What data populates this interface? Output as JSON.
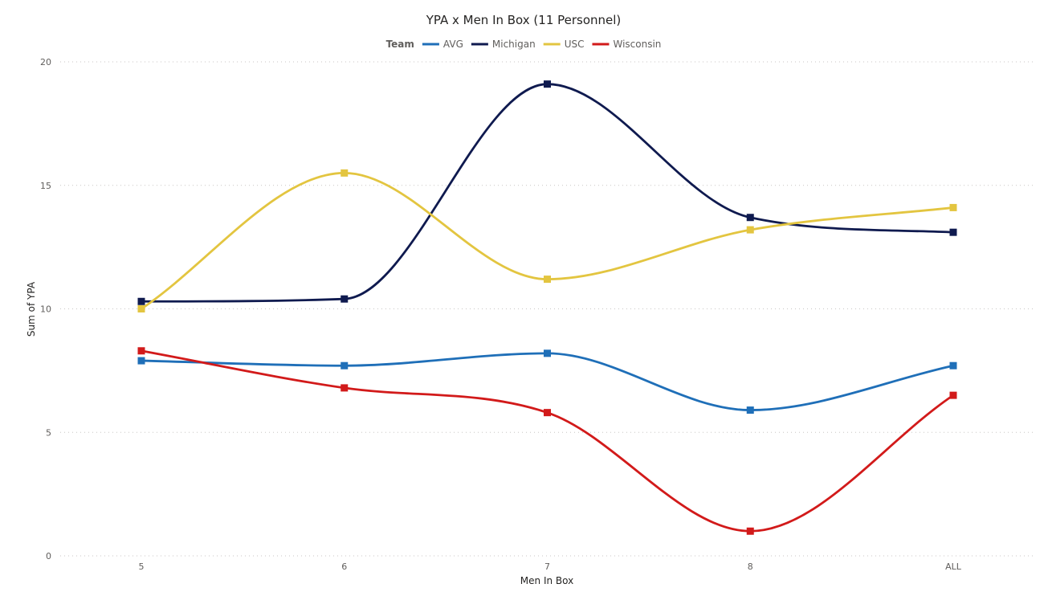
{
  "chart_data": {
    "type": "line",
    "title": "YPA x Men In Box (11 Personnel)",
    "xlabel": "Men In Box",
    "ylabel": "Sum of YPA",
    "legend_title": "Team",
    "legend_position": "top-center",
    "grid": true,
    "smooth": true,
    "ylim": [
      0,
      20
    ],
    "yticks": [
      0,
      5,
      10,
      15,
      20
    ],
    "categories": [
      "5",
      "6",
      "7",
      "8",
      "ALL"
    ],
    "series": [
      {
        "name": "AVG",
        "color": "#1f6fb8",
        "values": [
          7.9,
          7.7,
          8.2,
          5.9,
          7.7
        ]
      },
      {
        "name": "Michigan",
        "color": "#0f1a4f",
        "values": [
          10.3,
          10.4,
          19.1,
          13.7,
          13.1
        ]
      },
      {
        "name": "USC",
        "color": "#e3c540",
        "values": [
          10.0,
          15.5,
          11.2,
          13.2,
          14.1
        ]
      },
      {
        "name": "Wisconsin",
        "color": "#d21a1a",
        "values": [
          8.3,
          6.8,
          5.8,
          1.0,
          6.5
        ]
      }
    ]
  }
}
